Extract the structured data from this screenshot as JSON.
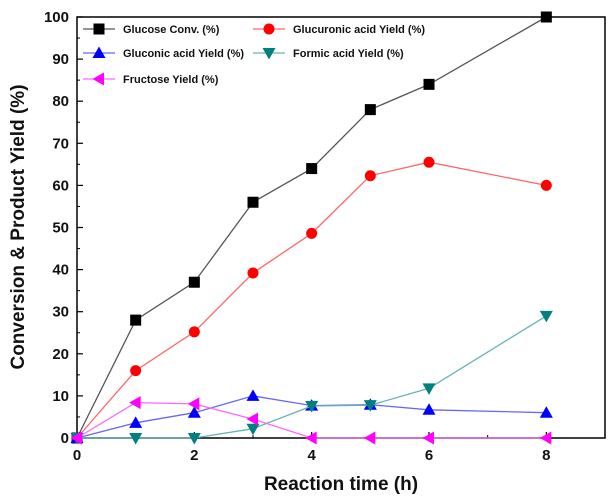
{
  "chart_data": {
    "type": "line",
    "xlabel": "Reaction time (h)",
    "ylabel": "Conversion & Product Yield (%)",
    "xlim": [
      0,
      9
    ],
    "ylim": [
      0,
      100
    ],
    "xticks": [
      0,
      2,
      4,
      6,
      8
    ],
    "yticks": [
      0,
      10,
      20,
      30,
      40,
      50,
      60,
      70,
      80,
      90,
      100
    ],
    "grid": false,
    "legend_position": "top-left",
    "x": [
      0,
      1,
      2,
      3,
      4,
      5,
      6,
      8
    ],
    "series": [
      {
        "name": "Glucose Conv. (%)",
        "marker": "square",
        "color": "#000000",
        "line_color": "#555555",
        "values": [
          0,
          28,
          37,
          56,
          64,
          78,
          84,
          100
        ]
      },
      {
        "name": "Glucuronic acid Yield (%)",
        "marker": "circle",
        "color": "#ff0000",
        "line_color": "#ff6666",
        "values": [
          0,
          16,
          25.2,
          39.2,
          48.6,
          62.3,
          65.5,
          60
        ]
      },
      {
        "name": "Gluconic acid Yield (%)",
        "marker": "triangle-up",
        "color": "#0000ff",
        "line_color": "#6666ff",
        "values": [
          0,
          3.6,
          6,
          10,
          7.7,
          7.9,
          6.7,
          6
        ]
      },
      {
        "name": "Formic acid Yield (%)",
        "marker": "triangle-down",
        "color": "#008080",
        "line_color": "#66b2b2",
        "values": [
          0,
          0,
          0,
          2.2,
          7.6,
          7.8,
          11.8,
          29
        ]
      },
      {
        "name": "Fructose Yield (%)",
        "marker": "triangle-left",
        "color": "#ff00ff",
        "line_color": "#ff66ff",
        "values": [
          0,
          8.4,
          8.1,
          4.5,
          0,
          0,
          0,
          0
        ]
      }
    ]
  }
}
